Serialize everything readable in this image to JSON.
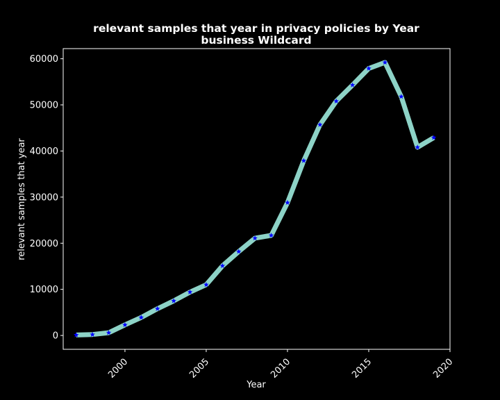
{
  "chart_data": {
    "type": "line",
    "title": "relevant samples that year in privacy policies by Year",
    "subtitle": "business Wildcard",
    "xlabel": "Year",
    "ylabel": "relevant samples that year",
    "xlim": [
      1996.2,
      2020.0
    ],
    "ylim": [
      -3000,
      62200
    ],
    "x_ticks": [
      2000,
      2005,
      2010,
      2015,
      2020
    ],
    "x_tick_labels": [
      "2000",
      "2005",
      "2010",
      "2015",
      "2020"
    ],
    "y_ticks": [
      0,
      10000,
      20000,
      30000,
      40000,
      50000,
      60000
    ],
    "y_tick_labels": [
      "0",
      "10000",
      "20000",
      "30000",
      "40000",
      "50000",
      "60000"
    ],
    "grid": false,
    "line_color": "#8dd3c7",
    "marker_color": "#0000ff",
    "marker": "star",
    "background": "#000000",
    "x": [
      1997,
      1998,
      1999,
      2000,
      2001,
      2002,
      2003,
      2004,
      2005,
      2006,
      2007,
      2008,
      2009,
      2010,
      2011,
      2012,
      2013,
      2014,
      2015,
      2016,
      2017,
      2018,
      2019
    ],
    "series": [
      {
        "values": [
          100,
          200,
          600,
          2300,
          3900,
          5800,
          7500,
          9400,
          11000,
          15100,
          18200,
          21100,
          21700,
          28800,
          37900,
          45700,
          50800,
          54300,
          57900,
          59200,
          51800,
          40800,
          42900
        ]
      }
    ]
  }
}
